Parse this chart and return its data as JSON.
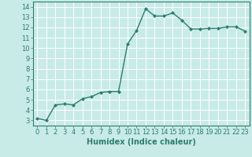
{
  "x": [
    0,
    1,
    2,
    3,
    4,
    5,
    6,
    7,
    8,
    9,
    10,
    11,
    12,
    13,
    14,
    15,
    16,
    17,
    18,
    19,
    20,
    21,
    22,
    23
  ],
  "y": [
    3.2,
    3.0,
    4.5,
    4.6,
    4.5,
    5.1,
    5.3,
    5.7,
    5.8,
    5.8,
    10.4,
    11.7,
    13.8,
    13.1,
    13.1,
    13.4,
    12.7,
    11.85,
    11.85,
    11.9,
    11.9,
    12.05,
    12.05,
    11.65
  ],
  "line_color": "#2e7d6e",
  "marker": "D",
  "marker_size": 2,
  "bg_color": "#c8ebe8",
  "grid_color": "#aed8d4",
  "xlabel": "Humidex (Indice chaleur)",
  "ylim": [
    2.5,
    14.5
  ],
  "xlim": [
    -0.5,
    23.5
  ],
  "yticks": [
    3,
    4,
    5,
    6,
    7,
    8,
    9,
    10,
    11,
    12,
    13,
    14
  ],
  "xticks": [
    0,
    1,
    2,
    3,
    4,
    5,
    6,
    7,
    8,
    9,
    10,
    11,
    12,
    13,
    14,
    15,
    16,
    17,
    18,
    19,
    20,
    21,
    22,
    23
  ],
  "tick_fontsize": 6,
  "xlabel_fontsize": 7,
  "axis_color": "#2e7d6e",
  "line_width": 1.0
}
